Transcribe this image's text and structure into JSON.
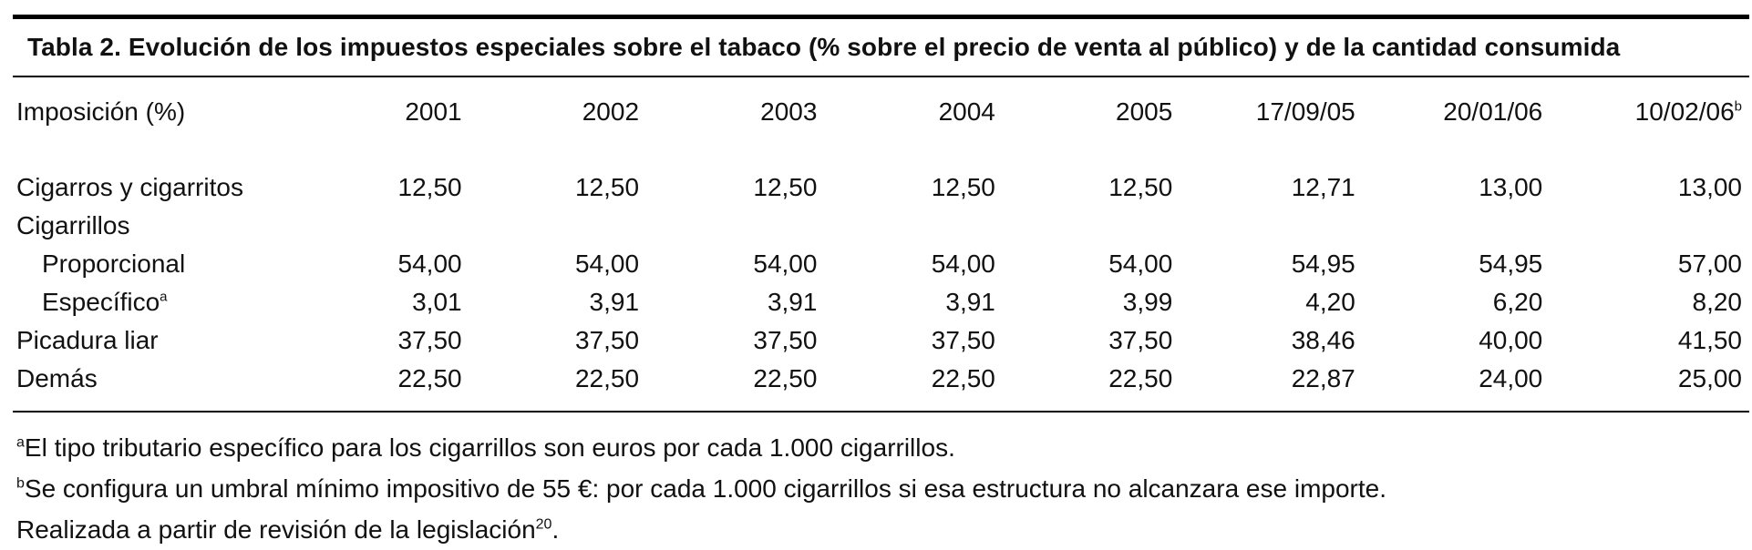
{
  "table": {
    "title": "Tabla 2. Evolución de los impuestos especiales sobre el tabaco (% sobre el precio de venta al público) y de la cantidad consumida",
    "header": {
      "label": "Imposición (%)",
      "columns": [
        "2001",
        "2002",
        "2003",
        "2004",
        "2005",
        "17/09/05",
        "20/01/06",
        "10/02/06"
      ],
      "last_column_mark": "b"
    },
    "rows": [
      {
        "label": "Cigarros y cigarritos",
        "mark": "",
        "indent": false,
        "values": [
          "12,50",
          "12,50",
          "12,50",
          "12,50",
          "12,50",
          "12,71",
          "13,00",
          "13,00"
        ]
      },
      {
        "label": "Cigarrillos",
        "mark": "",
        "indent": false,
        "values": [
          "",
          "",
          "",
          "",
          "",
          "",
          "",
          ""
        ]
      },
      {
        "label": "Proporcional",
        "mark": "",
        "indent": true,
        "values": [
          "54,00",
          "54,00",
          "54,00",
          "54,00",
          "54,00",
          "54,95",
          "54,95",
          "57,00"
        ]
      },
      {
        "label": "Específico",
        "mark": "a",
        "indent": true,
        "values": [
          "3,01",
          "3,91",
          "3,91",
          "3,91",
          "3,99",
          "4,20",
          "6,20",
          "8,20"
        ]
      },
      {
        "label": "Picadura liar",
        "mark": "",
        "indent": false,
        "values": [
          "37,50",
          "37,50",
          "37,50",
          "37,50",
          "37,50",
          "38,46",
          "40,00",
          "41,50"
        ]
      },
      {
        "label": "Demás",
        "mark": "",
        "indent": false,
        "values": [
          "22,50",
          "22,50",
          "22,50",
          "22,50",
          "22,50",
          "22,87",
          "24,00",
          "25,00"
        ]
      }
    ]
  },
  "notes": {
    "note_a": {
      "mark": "a",
      "text": "El tipo tributario específico para los cigarrillos son euros por cada 1.000 cigarrillos."
    },
    "note_b": {
      "mark": "b",
      "text": "Se configura un umbral mínimo impositivo de 55 €: por cada 1.000 cigarrillos si esa estructura no alcanzara ese importe."
    },
    "source": {
      "text": "Realizada a partir de revisión de la legislación",
      "ref": "20",
      "end": "."
    }
  }
}
